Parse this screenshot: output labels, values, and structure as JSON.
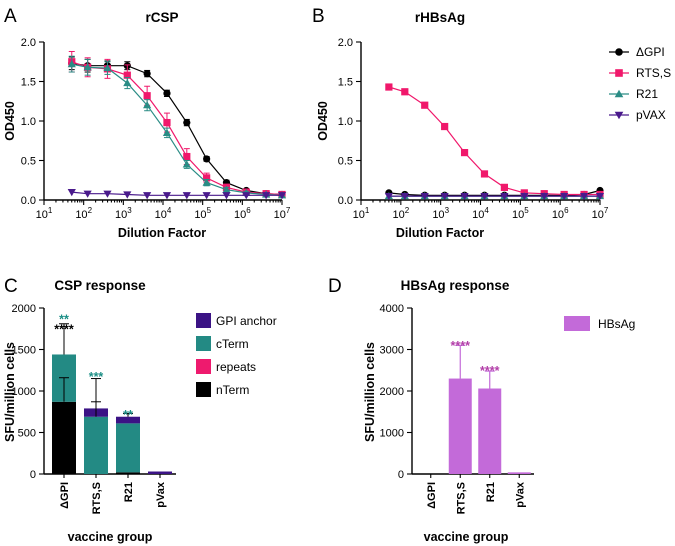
{
  "colors": {
    "gpi": "#000000",
    "rts": "#f0186b",
    "r21": "#2a8c85",
    "pvax": "#4a1a8c",
    "gpi_anchor": "#3b1385",
    "cterm": "#238a84",
    "repeats": "#ee1a6e",
    "nterm": "#000000",
    "hbsag": "#c36ad9",
    "sig_teal": "#1c8f86",
    "sig_black": "#000000",
    "sig_magenta": "#b23ea8",
    "error_bar": "#000000"
  },
  "chart_data": [
    {
      "panel": "A",
      "type": "line",
      "title": "rCSP",
      "xlabel": "Dilution Factor",
      "ylabel": "OD450",
      "xscale": "log",
      "xlim_exp": [
        1,
        7
      ],
      "ylim": [
        0,
        2.0
      ],
      "yticks": [
        "0.0",
        "0.5",
        "1.0",
        "1.5",
        "2.0"
      ],
      "x_exponents": [
        1.7,
        2.1,
        2.6,
        3.1,
        3.6,
        4.1,
        4.6,
        5.1,
        5.6,
        6.1,
        6.6,
        7.0
      ],
      "series": [
        {
          "name": "ΔGPI",
          "marker": "circle",
          "color_key": "gpi",
          "values": [
            1.73,
            1.7,
            1.7,
            1.7,
            1.6,
            1.35,
            0.98,
            0.52,
            0.22,
            0.12,
            0.08,
            0.07
          ],
          "errors": [
            0.08,
            0.08,
            0.06,
            0.05,
            0.04,
            0.04,
            0.04,
            0.03,
            0.03,
            0.02,
            0.02,
            0.02
          ]
        },
        {
          "name": "RTS,S",
          "marker": "square",
          "color_key": "rts",
          "values": [
            1.75,
            1.68,
            1.66,
            1.58,
            1.32,
            0.98,
            0.55,
            0.28,
            0.16,
            0.1,
            0.08,
            0.07
          ],
          "errors": [
            0.13,
            0.12,
            0.12,
            0.13,
            0.12,
            0.12,
            0.1,
            0.06,
            0.04,
            0.03,
            0.02,
            0.02
          ]
        },
        {
          "name": "R21",
          "marker": "triangle",
          "color_key": "r21",
          "values": [
            1.72,
            1.68,
            1.67,
            1.48,
            1.2,
            0.85,
            0.45,
            0.22,
            0.13,
            0.09,
            0.07,
            0.06
          ],
          "errors": [
            0.1,
            0.1,
            0.08,
            0.07,
            0.07,
            0.06,
            0.05,
            0.04,
            0.03,
            0.02,
            0.02,
            0.02
          ]
        },
        {
          "name": "pVAX",
          "marker": "triangle-down",
          "color_key": "pvax",
          "values": [
            0.1,
            0.08,
            0.08,
            0.07,
            0.06,
            0.06,
            0.06,
            0.06,
            0.06,
            0.06,
            0.06,
            0.06
          ],
          "errors": [
            0,
            0,
            0,
            0,
            0,
            0,
            0,
            0,
            0,
            0,
            0,
            0
          ]
        }
      ]
    },
    {
      "panel": "B",
      "type": "line",
      "title": "rHBsAg",
      "xlabel": "Dilution Factor",
      "ylabel": "OD450",
      "xscale": "log",
      "xlim_exp": [
        1,
        7
      ],
      "ylim": [
        0,
        2.0
      ],
      "yticks": [
        "0.0",
        "0.5",
        "1.0",
        "1.5",
        "2.0"
      ],
      "x_exponents": [
        1.7,
        2.1,
        2.6,
        3.1,
        3.6,
        4.1,
        4.6,
        5.1,
        5.6,
        6.1,
        6.6,
        7.0
      ],
      "legend": [
        "ΔGPI",
        "RTS,S",
        "R21",
        "pVAX"
      ],
      "series": [
        {
          "name": "ΔGPI",
          "marker": "circle",
          "color_key": "gpi",
          "values": [
            0.09,
            0.07,
            0.06,
            0.06,
            0.06,
            0.06,
            0.06,
            0.06,
            0.06,
            0.06,
            0.07,
            0.12
          ],
          "errors": [
            0.02,
            0.01,
            0.01,
            0.01,
            0.01,
            0.01,
            0.01,
            0.01,
            0.01,
            0.01,
            0.01,
            0.02
          ]
        },
        {
          "name": "RTS,S",
          "marker": "square",
          "color_key": "rts",
          "values": [
            1.43,
            1.37,
            1.2,
            0.93,
            0.6,
            0.33,
            0.16,
            0.09,
            0.08,
            0.07,
            0.07,
            0.07
          ],
          "errors": [
            0,
            0,
            0,
            0,
            0,
            0,
            0,
            0,
            0,
            0,
            0,
            0
          ]
        },
        {
          "name": "R21",
          "marker": "triangle",
          "color_key": "r21",
          "values": [
            0.05,
            0.05,
            0.05,
            0.05,
            0.05,
            0.05,
            0.05,
            0.05,
            0.05,
            0.05,
            0.05,
            0.05
          ],
          "errors": [
            0,
            0,
            0,
            0,
            0,
            0,
            0,
            0,
            0,
            0,
            0,
            0
          ]
        },
        {
          "name": "pVAX",
          "marker": "triangle-down",
          "color_key": "pvax",
          "values": [
            0.05,
            0.05,
            0.05,
            0.05,
            0.05,
            0.05,
            0.05,
            0.05,
            0.05,
            0.05,
            0.05,
            0.05
          ],
          "errors": [
            0,
            0,
            0,
            0,
            0,
            0,
            0,
            0,
            0,
            0,
            0,
            0
          ]
        }
      ]
    },
    {
      "panel": "C",
      "type": "bar",
      "stacked": true,
      "title": "CSP response",
      "xlabel": "vaccine group",
      "ylabel": "SFU/million cells",
      "ylim": [
        0,
        2000
      ],
      "yticks": [
        "0",
        "500",
        "1000",
        "1500",
        "2000"
      ],
      "categories": [
        "ΔGPI",
        "RTS,S",
        "R21",
        "pVax"
      ],
      "legend": [
        "GPI anchor",
        "cTerm",
        "repeats",
        "nTerm"
      ],
      "series": [
        {
          "name": "nTerm",
          "color_key": "nterm",
          "values": [
            870,
            0,
            20,
            0
          ]
        },
        {
          "name": "repeats",
          "color_key": "repeats",
          "values": [
            0,
            0,
            0,
            0
          ]
        },
        {
          "name": "cTerm",
          "color_key": "cterm",
          "values": [
            570,
            690,
            590,
            0
          ]
        },
        {
          "name": "GPI anchor",
          "color_key": "gpi_anchor",
          "values": [
            0,
            100,
            80,
            30
          ]
        }
      ],
      "error_bars": [
        {
          "category": "ΔGPI",
          "base": 870,
          "top": 1160
        },
        {
          "category": "ΔGPI",
          "base": 1440,
          "top": 1810
        },
        {
          "category": "RTS,S",
          "base": 690,
          "top": 870
        },
        {
          "category": "RTS,S",
          "base": 790,
          "top": 1150
        },
        {
          "category": "R21",
          "base": 690,
          "top": 730
        }
      ],
      "significance": [
        {
          "category": "ΔGPI",
          "text": "**",
          "value": 1920,
          "color_key": "sig_teal"
        },
        {
          "category": "ΔGPI",
          "text": "****",
          "value": 1800,
          "color_key": "sig_black"
        },
        {
          "category": "RTS,S",
          "text": "***",
          "value": 1230,
          "color_key": "sig_teal"
        },
        {
          "category": "R21",
          "text": "**",
          "value": 770,
          "color_key": "sig_teal"
        }
      ]
    },
    {
      "panel": "D",
      "type": "bar",
      "title": "HBsAg response",
      "xlabel": "vaccine group",
      "ylabel": "SFU/million cells",
      "ylim": [
        0,
        4000
      ],
      "yticks": [
        "0",
        "1000",
        "2000",
        "3000",
        "4000"
      ],
      "categories": [
        "ΔGPI",
        "RTS,S",
        "R21",
        "pVax"
      ],
      "legend": [
        "HBsAg"
      ],
      "series": [
        {
          "name": "HBsAg",
          "color_key": "hbsag",
          "values": [
            0,
            2300,
            2060,
            40
          ]
        }
      ],
      "errors": [
        0,
        800,
        420,
        0
      ],
      "significance": [
        {
          "category": "RTS,S",
          "text": "****",
          "value": 3200,
          "color_key": "sig_magenta"
        },
        {
          "category": "R21",
          "text": "****",
          "value": 2600,
          "color_key": "sig_magenta"
        }
      ]
    }
  ]
}
